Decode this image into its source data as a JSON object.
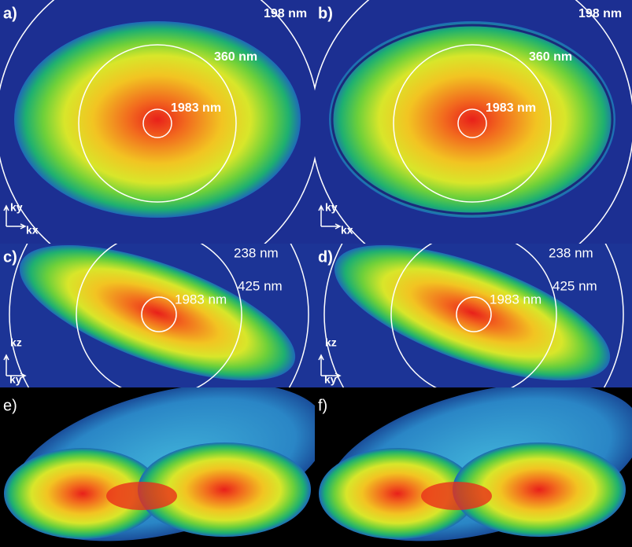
{
  "panels": [
    {
      "label": "a)",
      "rings": [
        "198 nm",
        "360 nm",
        "1983 nm"
      ],
      "axes": [
        "ky",
        "kx"
      ]
    },
    {
      "label": "b)",
      "rings": [
        "198 nm",
        "360 nm",
        "1983 nm"
      ],
      "axes": [
        "ky",
        "kx"
      ]
    },
    {
      "label": "c)",
      "rings": [
        "238 nm",
        "425 nm",
        "1983 nm"
      ],
      "axes": [
        "kz",
        "ky"
      ]
    },
    {
      "label": "d)",
      "rings": [
        "238 nm",
        "425 nm",
        "1983 nm"
      ],
      "axes": [
        "kz",
        "ky"
      ]
    },
    {
      "label": "e)"
    },
    {
      "label": "f)"
    }
  ]
}
